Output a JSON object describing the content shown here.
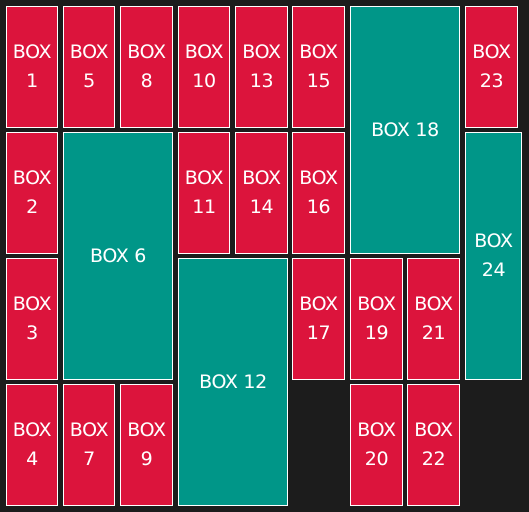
{
  "colors": {
    "background": "#1c1c1c",
    "small_box": "#dc143c",
    "large_box": "#009688",
    "border": "#ffffff",
    "text": "#ffffff"
  },
  "boxes": {
    "b1": "BOX\n1",
    "b2": "BOX\n2",
    "b3": "BOX\n3",
    "b4": "BOX\n4",
    "b5": "BOX\n5",
    "b6": "BOX 6",
    "b7": "BOX\n7",
    "b8": "BOX\n8",
    "b9": "BOX\n9",
    "b10": "BOX\n10",
    "b11": "BOX\n11",
    "b12": "BOX 12",
    "b13": "BOX\n13",
    "b14": "BOX\n14",
    "b15": "BOX\n15",
    "b16": "BOX\n16",
    "b17": "BOX\n17",
    "b18": "BOX 18",
    "b19": "BOX\n19",
    "b20": "BOX\n20",
    "b21": "BOX\n21",
    "b22": "BOX\n22",
    "b23": "BOX\n23",
    "b24": "BOX\n24"
  }
}
